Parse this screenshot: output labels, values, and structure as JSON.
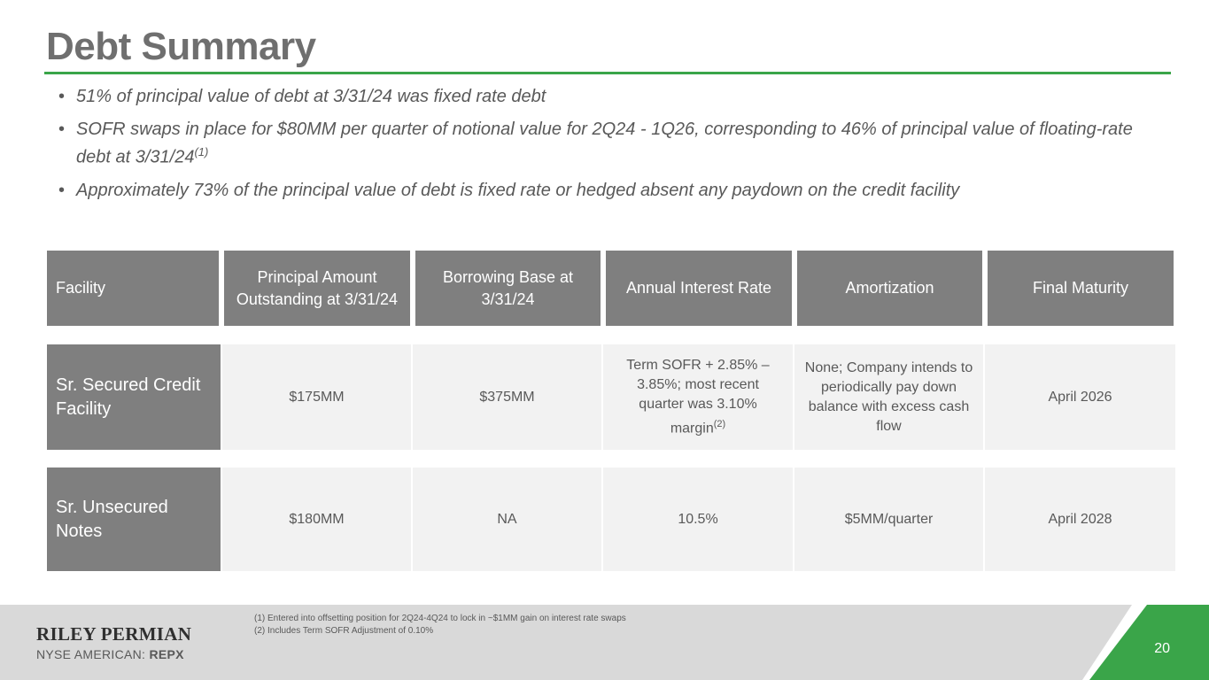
{
  "title": "Debt Summary",
  "bullets": [
    {
      "text": "51% of principal value of debt at 3/31/24 was fixed rate debt",
      "sup": ""
    },
    {
      "text": "SOFR swaps in place for $80MM per quarter of notional value for 2Q24 - 1Q26, corresponding to 46% of principal value of floating-rate debt at 3/31/24",
      "sup": "(1)"
    },
    {
      "text": "Approximately 73% of the principal value of debt is fixed rate or hedged absent any paydown on the credit facility",
      "sup": ""
    }
  ],
  "table": {
    "headers": [
      "Facility",
      "Principal Amount Outstanding at 3/31/24",
      "Borrowing Base at 3/31/24",
      "Annual Interest Rate",
      "Amortization",
      "Final Maturity"
    ],
    "rows": [
      {
        "facility": "Sr. Secured Credit Facility",
        "principal": "$175MM",
        "borrowing_base": "$375MM",
        "interest_rate": "Term SOFR + 2.85% – 3.85%; most recent quarter was 3.10% margin",
        "interest_rate_sup": "(2)",
        "amortization": "None; Company intends to periodically pay down balance with excess cash flow",
        "maturity": "April 2026"
      },
      {
        "facility": "Sr. Unsecured Notes",
        "principal": "$180MM",
        "borrowing_base": "NA",
        "interest_rate": "10.5%",
        "interest_rate_sup": "",
        "amortization": "$5MM/quarter",
        "maturity": "April 2028"
      }
    ]
  },
  "footnotes": [
    "(1)  Entered into offsetting position for 2Q24-4Q24 to lock in ~$1MM gain on interest rate swaps",
    "(2)  Includes Term SOFR Adjustment of 0.10%"
  ],
  "footer": {
    "brand": "RILEY PERMIAN",
    "exchange": "NYSE AMERICAN:",
    "ticker": "REPX",
    "page_number": "20"
  },
  "colors": {
    "accent_green": "#3aa549",
    "header_gray": "#7f7f7f",
    "cell_bg": "#f2f2f2",
    "footer_bg": "#d9d9d9"
  }
}
